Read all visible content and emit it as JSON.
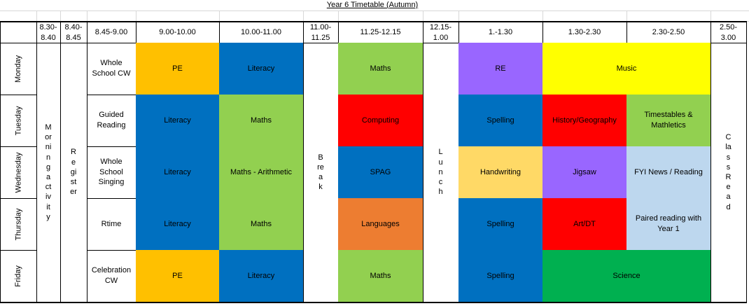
{
  "title": "Year 6 Timetable (Autumn)",
  "headers": [
    "",
    "8.30-8.40",
    "8.40-8.45",
    "8.45-9.00",
    "9.00-10.00",
    "10.00-11.00",
    "11.00-11.25",
    "11.25-12.15",
    "12.15-1.00",
    "1.-1.30",
    "1.30-2.30",
    "2.30-2.50",
    "2.50-3.00"
  ],
  "days": [
    "Monday",
    "Tuesday",
    "Wednesday",
    "Thursday",
    "Friday"
  ],
  "merged": {
    "morning_activity": "Morning activity",
    "register": "Register",
    "break": "Break",
    "lunch": "Lunch",
    "class_read": "Class Read"
  },
  "rows": {
    "monday": {
      "early": "Whole School CW",
      "p1": "PE",
      "p2": "Literacy",
      "p3": "Maths",
      "p4": "RE",
      "p5": "Music"
    },
    "tuesday": {
      "early": "Guided Reading",
      "p1": "Literacy",
      "p2": "Maths",
      "p3": "Computing",
      "p4": "Spelling",
      "p5": "History/Geography",
      "p6": "Timestables & Mathletics"
    },
    "wednesday": {
      "early": "Whole School Singing",
      "p1": "Literacy",
      "p2": "Maths - Arithmetic",
      "p3": "SPAG",
      "p4": "Handwriting",
      "p5": "Jigsaw",
      "p6": "FYI News / Reading"
    },
    "thursday": {
      "early": "Rtime",
      "p1": "Literacy",
      "p2": "Maths",
      "p3": "Languages",
      "p4": "Spelling",
      "p5": "Art/DT",
      "p6": "Paired reading with Year 1"
    },
    "friday": {
      "early": "Celebration CW",
      "p1": "PE",
      "p2": "Literacy",
      "p3": "Maths",
      "p4": "Spelling",
      "p5": "Science"
    }
  },
  "colors": {
    "pe": "#ffc000",
    "literacy": "#0070c0",
    "maths": "#92d050",
    "re": "#9966ff",
    "music": "#ffff00",
    "computing": "#ff0000",
    "spelling": "#0070c0",
    "history_geography": "#ff0000",
    "spag": "#0070c0",
    "handwriting": "#ffd966",
    "jigsaw": "#9966ff",
    "fyi_news": "#bdd7ee",
    "languages": "#ed7d31",
    "art_dt": "#ff0000",
    "paired_reading": "#bdd7ee",
    "science": "#00b050"
  }
}
